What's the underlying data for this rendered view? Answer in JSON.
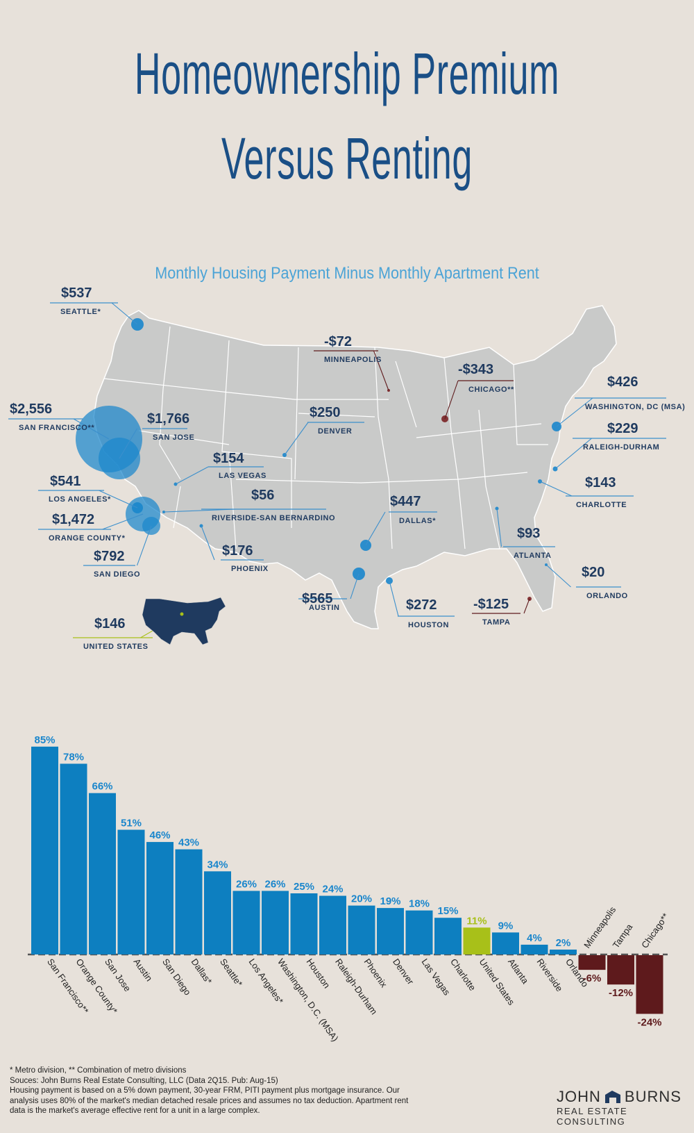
{
  "title_line1": "Homeownership Premium",
  "title_line2": "Versus Renting",
  "subtitle": "Monthly Housing Payment Minus Monthly Apartment Rent",
  "colors": {
    "positive": "#0d7fc0",
    "negative": "#5e1a1c",
    "us": "#a8c019",
    "map": "#c9cac9",
    "accent": "#1a4f86"
  },
  "map_labels": [
    {
      "value": "$537",
      "label": "SEATTLE*",
      "neg": false
    },
    {
      "value": "$2,556",
      "label": "SAN FRANCISCO**",
      "neg": false
    },
    {
      "value": "$1,766",
      "label": "SAN JOSE",
      "neg": false
    },
    {
      "value": "$541",
      "label": "LOS ANGELES*",
      "neg": false
    },
    {
      "value": "$1,472",
      "label": "ORANGE COUNTY*",
      "neg": false
    },
    {
      "value": "$792",
      "label": "SAN DIEGO",
      "neg": false
    },
    {
      "value": "$154",
      "label": "LAS VEGAS",
      "neg": false
    },
    {
      "value": "$56",
      "label": "RIVERSIDE-SAN BERNARDINO",
      "neg": false
    },
    {
      "value": "$176",
      "label": "PHOENIX",
      "neg": false
    },
    {
      "value": "$250",
      "label": "DENVER",
      "neg": false
    },
    {
      "value": "-$72",
      "label": "MINNEAPOLIS",
      "neg": true
    },
    {
      "value": "-$343",
      "label": "CHICAGO**",
      "neg": true
    },
    {
      "value": "$447",
      "label": "DALLAS*",
      "neg": false
    },
    {
      "value": "$565",
      "label": "AUSTIN",
      "neg": false
    },
    {
      "value": "$272",
      "label": "HOUSTON",
      "neg": false
    },
    {
      "value": "$426",
      "label": "WASHINGTON, DC (MSA)",
      "neg": false
    },
    {
      "value": "$229",
      "label": "RALEIGH-DURHAM",
      "neg": false
    },
    {
      "value": "$143",
      "label": "CHARLOTTE",
      "neg": false
    },
    {
      "value": "$93",
      "label": "ATLANTA",
      "neg": false
    },
    {
      "value": "$20",
      "label": "ORLANDO",
      "neg": false
    },
    {
      "value": "-$125",
      "label": "TAMPA",
      "neg": true
    },
    {
      "value": "$146",
      "label": "UNITED STATES",
      "neg": false
    }
  ],
  "chart_data": {
    "type": "bar",
    "categories": [
      "San Francisco**",
      "Orange County*",
      "San Jose",
      "Austin",
      "San Diego",
      "Dallas*",
      "Seattle*",
      "Los Angeles*",
      "Washington, D.C. (MSA)",
      "Houston",
      "Raleigh-Durham",
      "Phoenix",
      "Denver",
      "Las Vegas",
      "Charlotte",
      "United States",
      "Atlanta",
      "Riverside",
      "Orlando",
      "Minneapolis",
      "Tampa",
      "Chicago**"
    ],
    "values": [
      85,
      78,
      66,
      51,
      46,
      43,
      34,
      26,
      26,
      25,
      24,
      20,
      19,
      18,
      15,
      11,
      9,
      4,
      2,
      -6,
      -12,
      -24
    ],
    "value_labels": [
      "85%",
      "78%",
      "66%",
      "51%",
      "46%",
      "43%",
      "34%",
      "26%",
      "26%",
      "25%",
      "24%",
      "20%",
      "19%",
      "18%",
      "15%",
      "11%",
      "9%",
      "4%",
      "2%",
      "-6%",
      "-12%",
      "-24%"
    ],
    "highlight": "United States",
    "ylim": [
      -24,
      85
    ]
  },
  "notes": [
    "* Metro division, ** Combination of metro divisions",
    "Souces: John Burns Real Estate Consulting, LLC (Data 2Q15. Pub: Aug-15)",
    "Housing payment is based on a 5% down payment, 30-year FRM, PITI payment plus mortgage insurance. Our",
    "analysis uses 80% of the market's median detached resale prices and assumes no tax deduction.  Apartment rent",
    "data is the market's average effective rent for a unit in a large complex."
  ],
  "logo": {
    "left": "JOHN",
    "right": "BURNS",
    "sub": "REAL ESTATE CONSULTING"
  }
}
